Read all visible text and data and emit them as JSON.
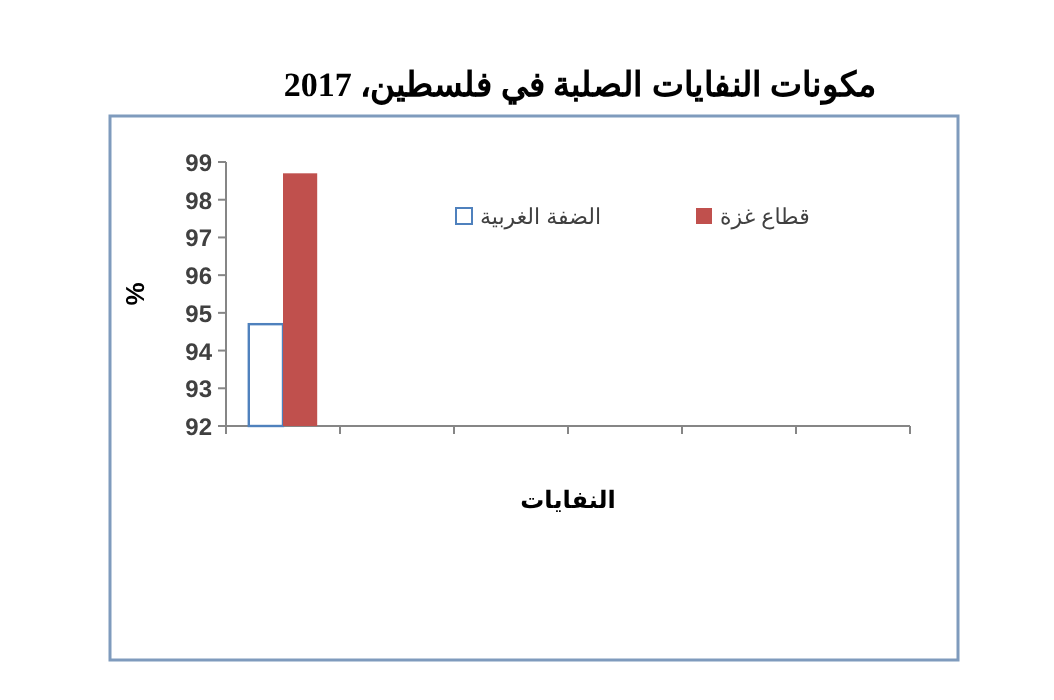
{
  "chart_data": {
    "type": "bar",
    "title": "مكونات النفايات الصلبة في فلسطين، 2017",
    "xlabel": "النفايات",
    "ylabel": "%",
    "categories": [
      null,
      null,
      null,
      null,
      null,
      null
    ],
    "series": [
      {
        "name": "الضفة الغربية",
        "color": "#ffffff",
        "values": [
          94.7,
          null,
          null,
          null,
          null,
          null
        ]
      },
      {
        "name": "قطاع غزة",
        "color": "#c0504d",
        "values": [
          98.7,
          null,
          null,
          null,
          null,
          null
        ]
      }
    ],
    "ylim": [
      92,
      99
    ],
    "yticks": [
      92,
      93,
      94,
      95,
      96,
      97,
      98,
      99
    ],
    "grid": false,
    "legend": "top right"
  }
}
